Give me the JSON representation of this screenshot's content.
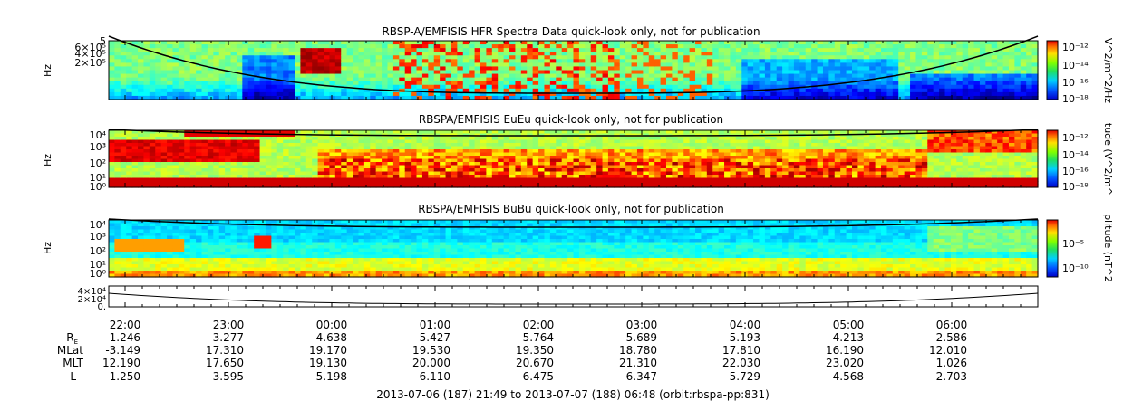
{
  "chart_data": [
    {
      "type": "heatmap",
      "title": "RBSP-A/EMFISIS  HFR Spectra Data quick-look only, not for publication",
      "ylabel": "Hz",
      "yticks": [
        "6×10⁵",
        "4×10⁵",
        "2×10⁵"
      ],
      "ytick_top": "5",
      "colorbar_label": "V^2/m^2/Hz",
      "colorbar_ticks": [
        "10⁻¹²",
        "10⁻¹⁴",
        "10⁻¹⁶",
        "10⁻¹⁸"
      ],
      "colorbar_range": [
        -18.5,
        -11.5
      ]
    },
    {
      "type": "heatmap",
      "title": "RBSPA/EMFISIS  EuEu quick-look only, not for publication",
      "ylabel": "Hz",
      "yticks": [
        "10⁴",
        "10³",
        "10²",
        "10¹",
        "10⁰"
      ],
      "colorbar_label": "tude (V^2/m^",
      "colorbar_ticks": [
        "10⁻¹²",
        "10⁻¹⁴",
        "10⁻¹⁶",
        "10⁻¹⁸"
      ],
      "colorbar_range": [
        -18.5,
        -11.5
      ]
    },
    {
      "type": "heatmap",
      "title": "RBSPA/EMFISIS  BuBu quick-look only, not for publication",
      "ylabel": "Hz",
      "yticks": [
        "10⁴",
        "10³",
        "10²",
        "10¹",
        "10⁰"
      ],
      "colorbar_label": "plitude (nT^2",
      "colorbar_ticks": [
        "10⁻⁵",
        "10⁻¹⁰"
      ],
      "colorbar_range": [
        -13,
        -2
      ]
    },
    {
      "type": "line",
      "yticks": [
        "4×10⁴",
        "2×10⁴",
        "0."
      ],
      "description_series": "gyrofrequency trace"
    }
  ],
  "x_axis": {
    "tick_labels": [
      "22:00",
      "23:00",
      "00:00",
      "01:00",
      "02:00",
      "03:00",
      "04:00",
      "05:00",
      "06:00"
    ],
    "start": "2013-07-06 21:49",
    "end": "2013-07-07 06:48"
  },
  "ephemeris": {
    "row_labels": [
      "R",
      "MLat",
      "MLT",
      "L"
    ],
    "re_subscript": "E",
    "rows": [
      [
        "1.246",
        "3.277",
        "4.638",
        "5.427",
        "5.764",
        "5.689",
        "5.193",
        "4.213",
        "2.586"
      ],
      [
        "-3.149",
        "17.310",
        "19.170",
        "19.530",
        "19.350",
        "18.780",
        "17.810",
        "16.190",
        "12.010"
      ],
      [
        "12.190",
        "17.650",
        "19.130",
        "20.000",
        "20.670",
        "21.310",
        "22.030",
        "23.020",
        "1.026"
      ],
      [
        "1.250",
        "3.595",
        "5.198",
        "6.110",
        "6.475",
        "6.347",
        "5.729",
        "4.568",
        "2.703"
      ]
    ]
  },
  "footer": "2013-07-06 (187) 21:49 to 2013-07-07 (188) 06:48 (orbit:rbspa-pp:831)"
}
